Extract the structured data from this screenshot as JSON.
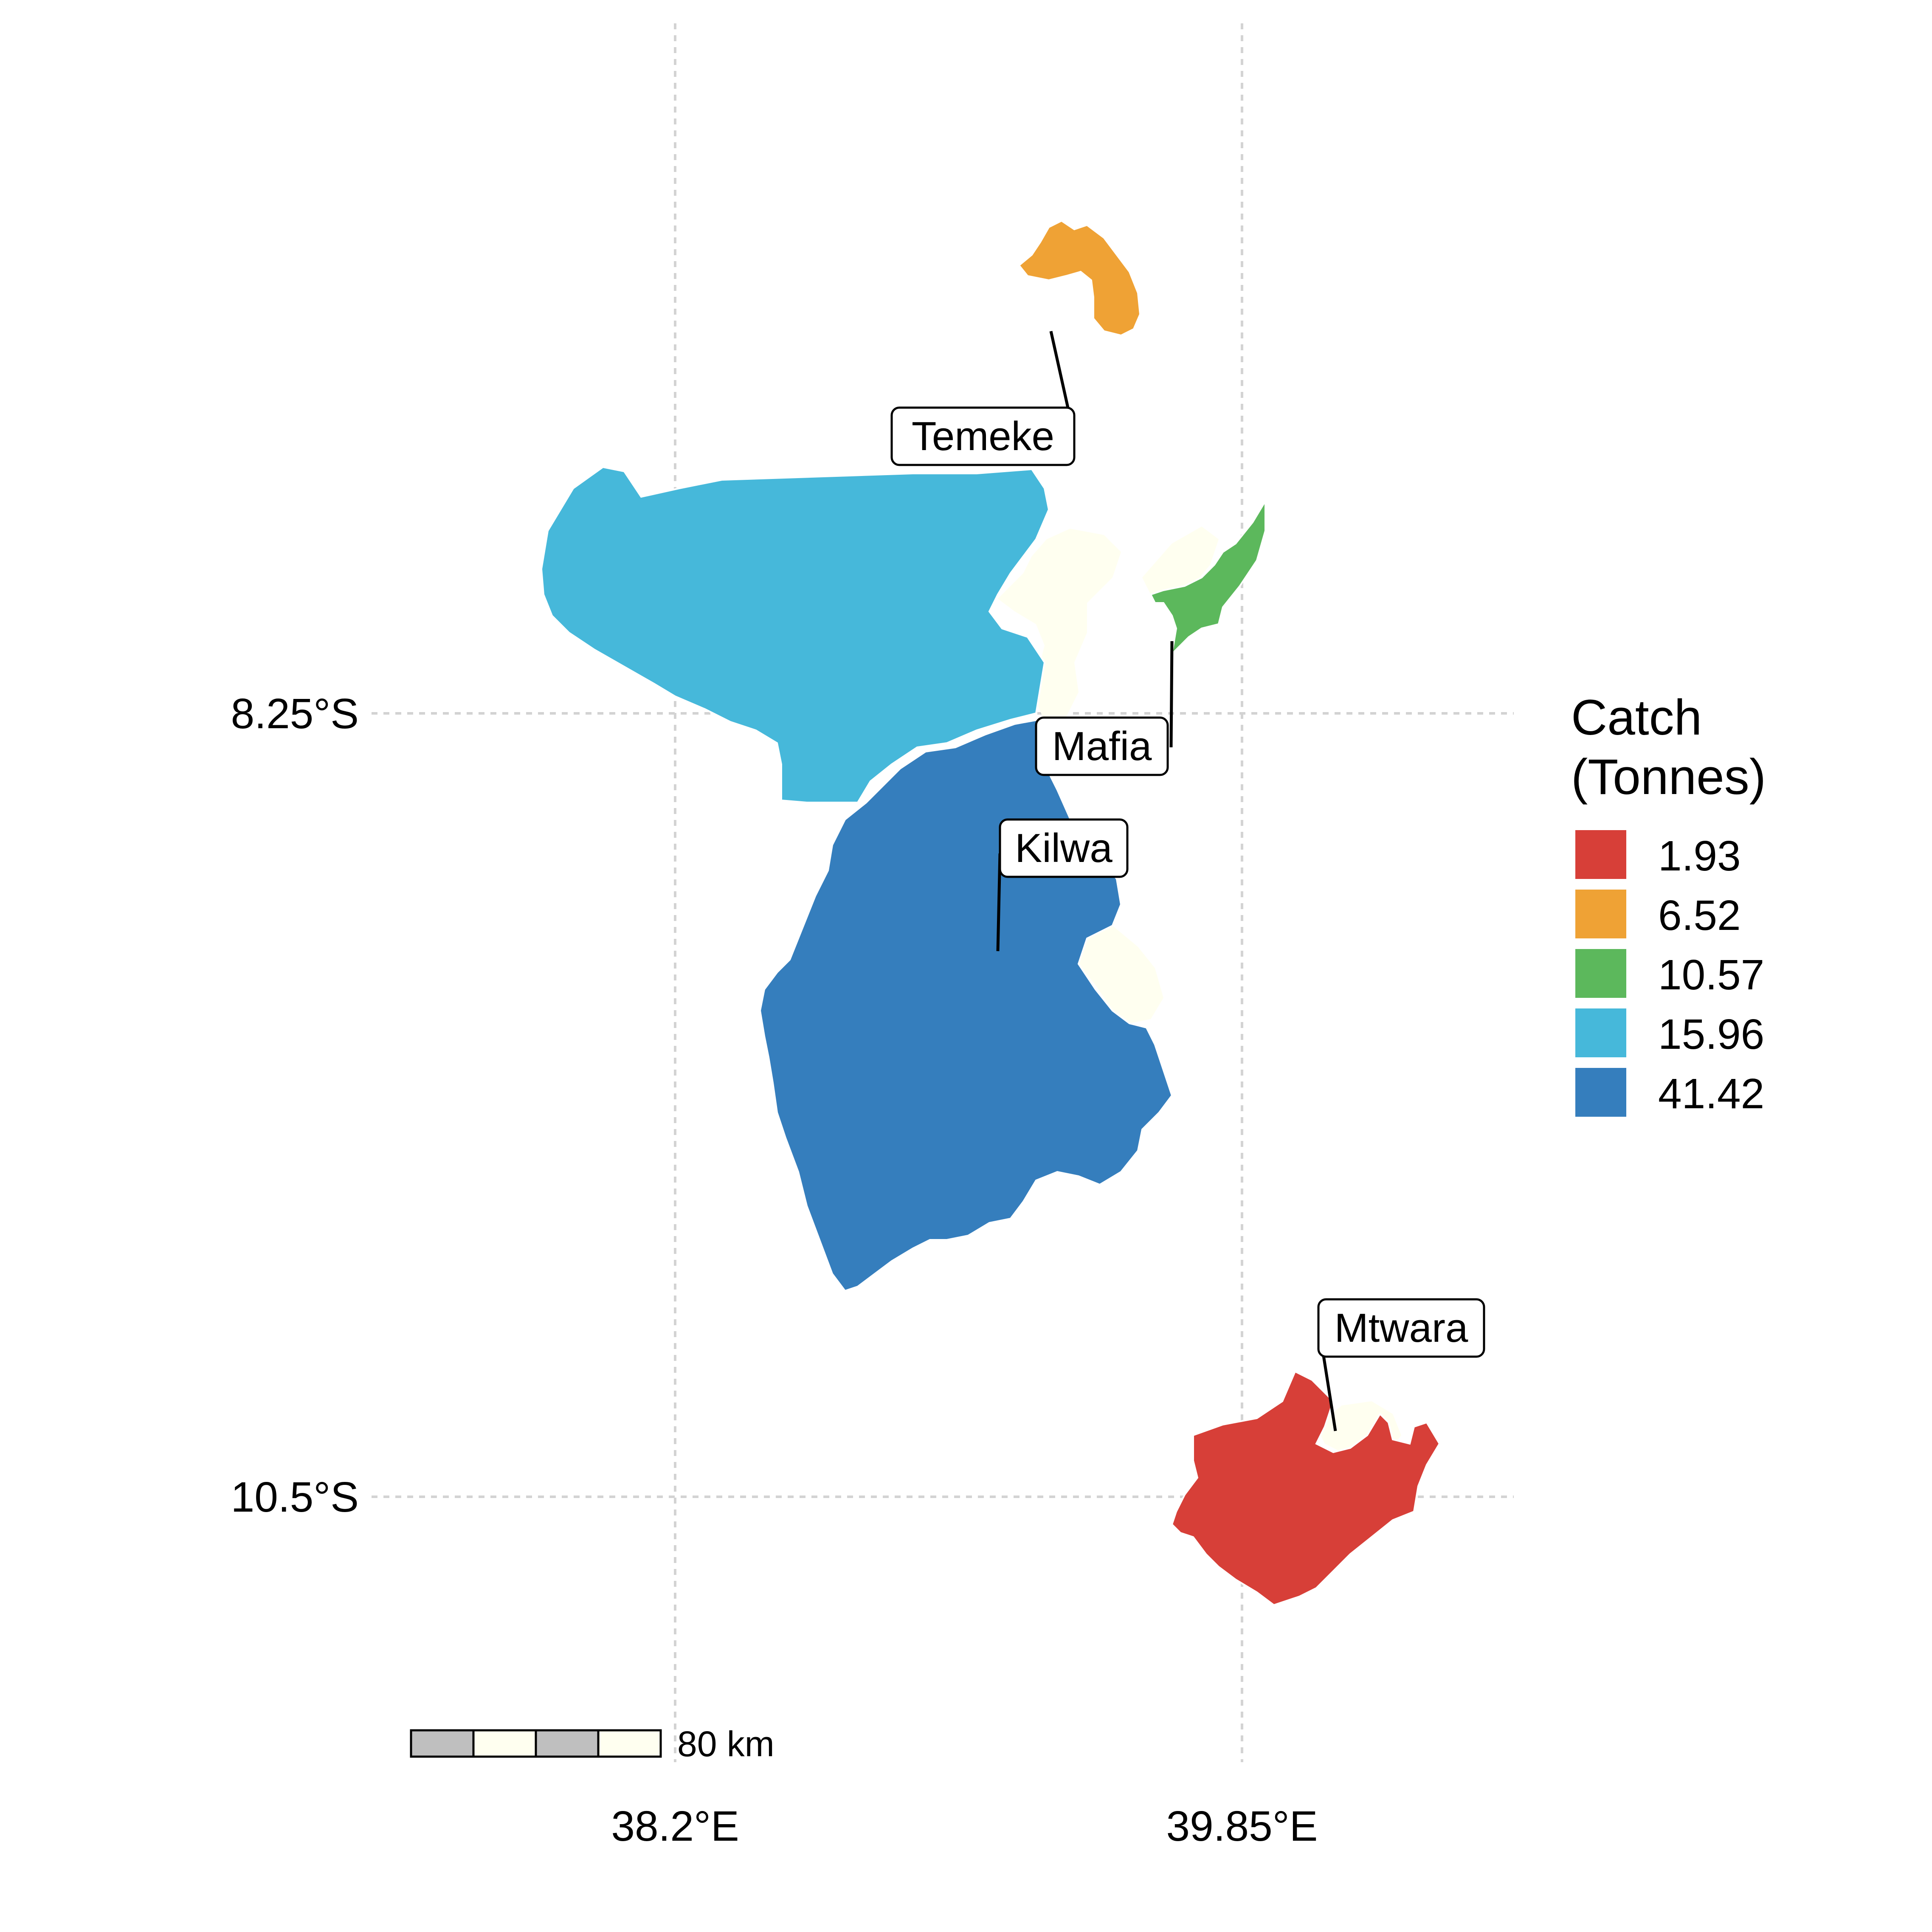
{
  "legend": {
    "title_line1": "Catch",
    "title_line2": "(Tonnes)",
    "items": [
      {
        "label": "1.93",
        "color": "#d73f38"
      },
      {
        "label": "6.52",
        "color": "#efa235"
      },
      {
        "label": "10.57",
        "color": "#5cb85c"
      },
      {
        "label": "15.96",
        "color": "#46b8da"
      },
      {
        "label": "41.42",
        "color": "#357ebd"
      }
    ]
  },
  "axes": {
    "y_ticks": [
      "8.25°S",
      "10.5°S"
    ],
    "x_ticks": [
      "38.2°E",
      "39.85°E"
    ]
  },
  "regions": [
    {
      "name": "Temeke",
      "catch": 6.52,
      "color": "#efa235"
    },
    {
      "name": "Mafia",
      "catch": 10.57,
      "color": "#5cb85c"
    },
    {
      "name": "Kilwa",
      "catch": 41.42,
      "color": "#357ebd"
    },
    {
      "name": "Mtwara",
      "catch": 1.93,
      "color": "#d73f38"
    }
  ],
  "background_land_color": "#fffff0",
  "scale_bar": {
    "label": "80 km",
    "colors": [
      "#bfbfbf",
      "#fffff0",
      "#bfbfbf",
      "#fffff0"
    ]
  }
}
